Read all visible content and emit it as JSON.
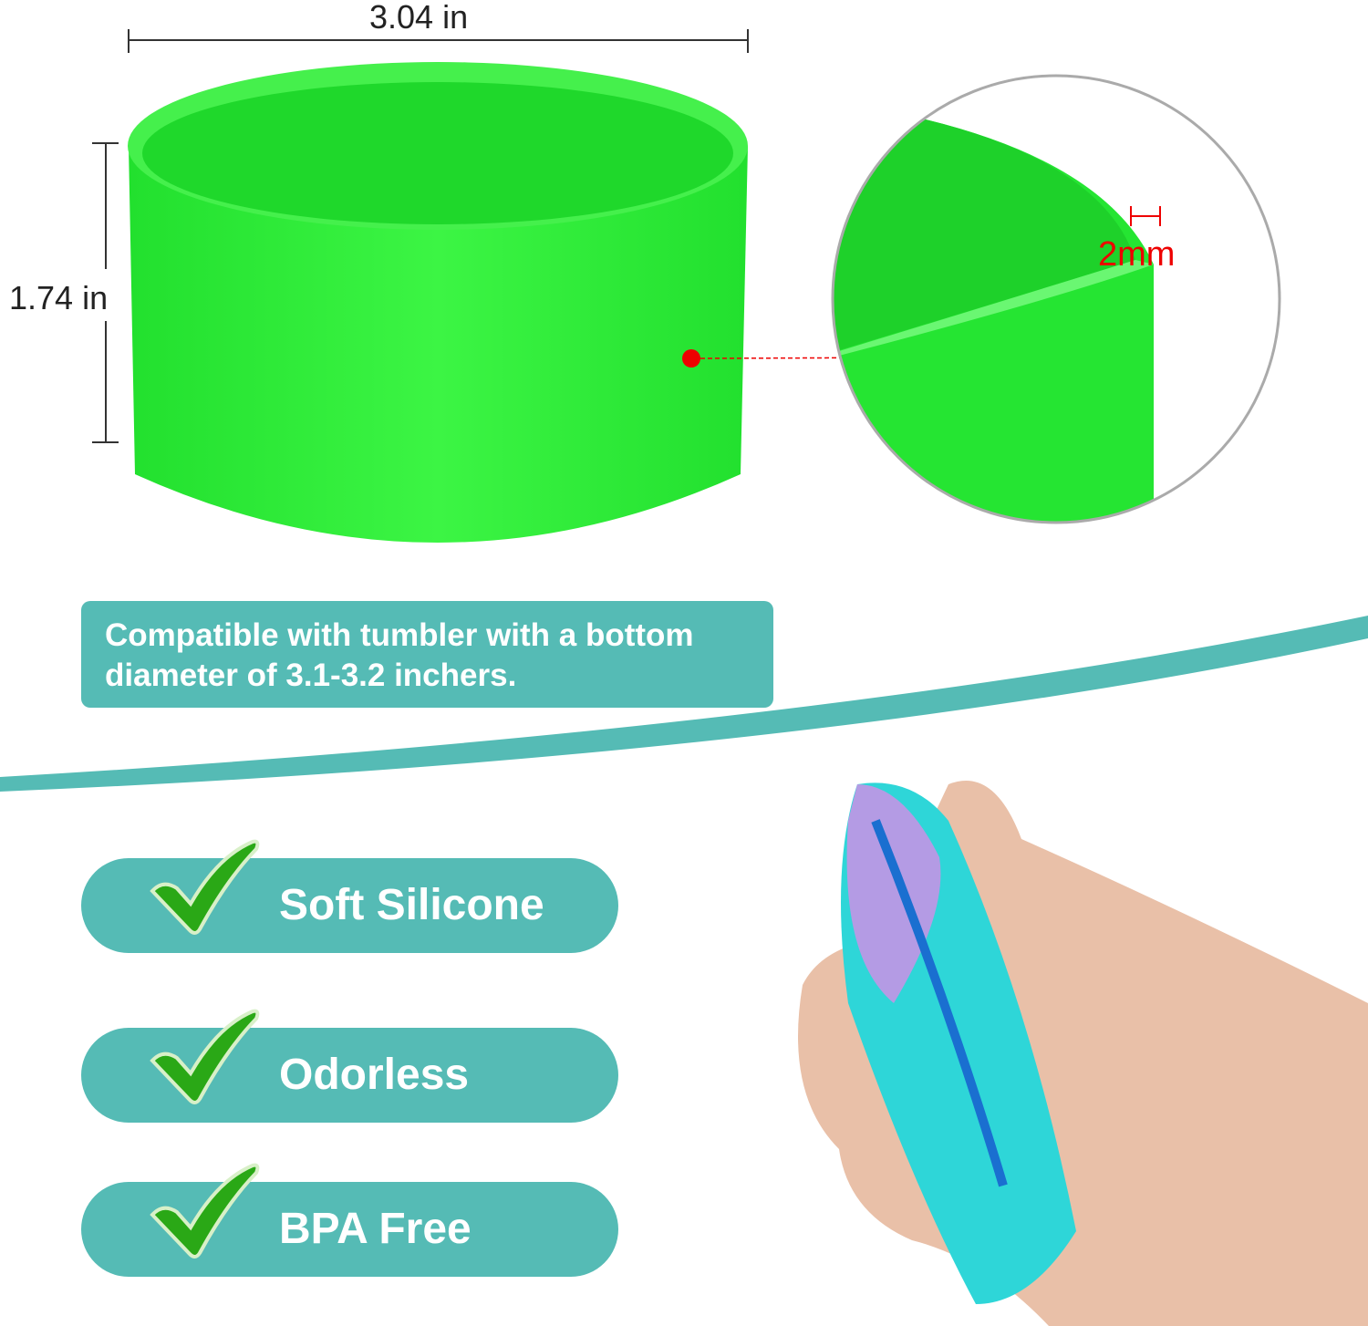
{
  "dimensions": {
    "width": "3.04 in",
    "height": "1.74 in",
    "thickness": "2mm"
  },
  "compatibility_note": "Compatible with tumbler with a bottom diameter of 3.1-3.2 inchers.",
  "features": [
    {
      "label": "Soft Silicone",
      "icon": "check-icon"
    },
    {
      "label": "Odorless",
      "icon": "check-icon"
    },
    {
      "label": "BPA Free",
      "icon": "check-icon"
    }
  ],
  "colors": {
    "accent": "#55bbb5",
    "product": "#2cf03a",
    "check": "#2aa816",
    "marker": "#e00000"
  }
}
